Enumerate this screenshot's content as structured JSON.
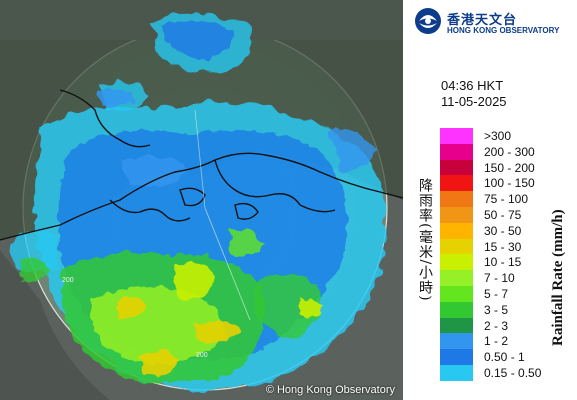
{
  "map": {
    "copyright": "© Hong Kong Observatory",
    "range_labels": [
      "200",
      "200"
    ],
    "colors": {
      "background": "#585e5a",
      "land": "#3a4c3a",
      "coast": "#111111",
      "radar_disc": "#8fb39a"
    }
  },
  "header": {
    "logo_name_zh": "香港天文台",
    "logo_name_en": "HONG KONG OBSERVATORY",
    "logo_icon": "hko-logo-icon"
  },
  "timestamp": {
    "time": "04:36 HKT",
    "date": "11-05-2025"
  },
  "legend": {
    "title_zh": "降雨率(毫米/小時)",
    "title_en": "Rainfall Rate (mm/h)",
    "items": [
      {
        "label": ">300",
        "color": "#ff33ff"
      },
      {
        "label": "200 - 300",
        "color": "#e6008c"
      },
      {
        "label": "150 - 200",
        "color": "#c8003c"
      },
      {
        "label": "100 - 150",
        "color": "#f01414"
      },
      {
        "label": "75 - 100",
        "color": "#f07814"
      },
      {
        "label": "50 - 75",
        "color": "#f09614"
      },
      {
        "label": "30 - 50",
        "color": "#ffb400"
      },
      {
        "label": "15 - 30",
        "color": "#e6d200"
      },
      {
        "label": "10 - 15",
        "color": "#c8f000"
      },
      {
        "label": "7 - 10",
        "color": "#96f028"
      },
      {
        "label": "5 - 7",
        "color": "#64e61e"
      },
      {
        "label": "3 - 5",
        "color": "#32c832"
      },
      {
        "label": "2 - 3",
        "color": "#1e9646"
      },
      {
        "label": "1 - 2",
        "color": "#3296f0"
      },
      {
        "label": "0.50 - 1",
        "color": "#1e78e6"
      },
      {
        "label": "0.15 - 0.50",
        "color": "#28c8f0"
      }
    ]
  }
}
